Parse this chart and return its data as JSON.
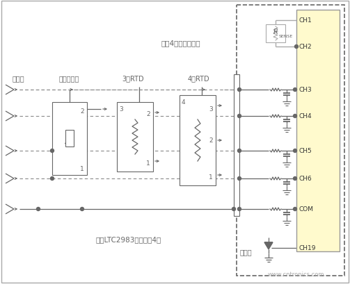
{
  "bg_color": "#ffffff",
  "line_color": "#666666",
  "dashed_color": "#888888",
  "chip_fill": "#fffacd",
  "chip_border": "#999999",
  "outer_dash_color": "#666666",
  "gray_line": "#aaaaaa",
  "text_color": "#666666",
  "watermark_color": "#aaaaaa",
  "ch_labels": [
    "CH1",
    "CH2",
    "CH3",
    "CH4",
    "CH5",
    "CH6",
    "COM",
    "CH19"
  ],
  "ch_y": [
    30,
    68,
    130,
    168,
    218,
    258,
    302,
    358
  ],
  "sensor_labels": [
    "热电偶",
    "热敏电阵器",
    "3线RTD",
    "4线RTD"
  ],
  "label_top": "所有4组传感器共用",
  "label_bottom": "每个LTC2983连接多达4组",
  "cold_label": "冷接点",
  "watermark": "www.cntronics.com",
  "rsense_label": "R",
  "rsense_sub": "SENSE"
}
